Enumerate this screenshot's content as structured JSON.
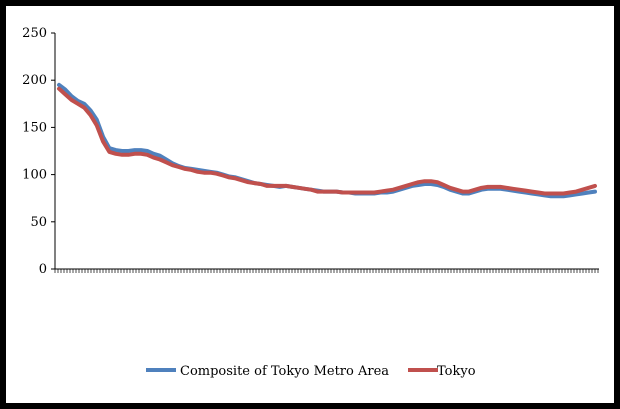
{
  "chart_data": {
    "type": "line",
    "ylim": [
      0,
      250
    ],
    "yticks": [
      0,
      50,
      100,
      150,
      200,
      250
    ],
    "grid": false,
    "legend_position": "bottom",
    "series": [
      {
        "name": "Composite of Tokyo Metro Area",
        "color": "#4f81bd",
        "values": [
          195,
          190,
          183,
          178,
          175,
          168,
          158,
          140,
          128,
          126,
          125,
          125,
          126,
          126,
          125,
          122,
          120,
          116,
          112,
          109,
          107,
          106,
          105,
          104,
          103,
          102,
          100,
          98,
          97,
          95,
          93,
          91,
          90,
          89,
          88,
          87,
          88,
          87,
          86,
          85,
          84,
          83,
          82,
          82,
          82,
          81,
          81,
          80,
          80,
          80,
          80,
          81,
          81,
          82,
          84,
          86,
          88,
          89,
          90,
          90,
          89,
          87,
          84,
          82,
          80,
          80,
          82,
          84,
          85,
          85,
          85,
          84,
          83,
          82,
          81,
          80,
          79,
          78,
          77,
          77,
          77,
          78,
          79,
          80,
          81,
          82
        ]
      },
      {
        "name": "Tokyo",
        "color": "#c0504d",
        "values": [
          191,
          185,
          179,
          175,
          171,
          163,
          152,
          135,
          124,
          122,
          121,
          121,
          122,
          122,
          121,
          118,
          116,
          113,
          110,
          108,
          106,
          105,
          103,
          102,
          102,
          101,
          99,
          97,
          96,
          94,
          92,
          91,
          90,
          88,
          88,
          88,
          88,
          87,
          86,
          85,
          84,
          82,
          82,
          82,
          82,
          81,
          81,
          81,
          81,
          81,
          81,
          82,
          83,
          84,
          86,
          88,
          90,
          92,
          93,
          93,
          92,
          89,
          86,
          84,
          82,
          82,
          84,
          86,
          87,
          87,
          87,
          86,
          85,
          84,
          83,
          82,
          81,
          80,
          80,
          80,
          80,
          81,
          82,
          84,
          86,
          88
        ]
      }
    ]
  }
}
